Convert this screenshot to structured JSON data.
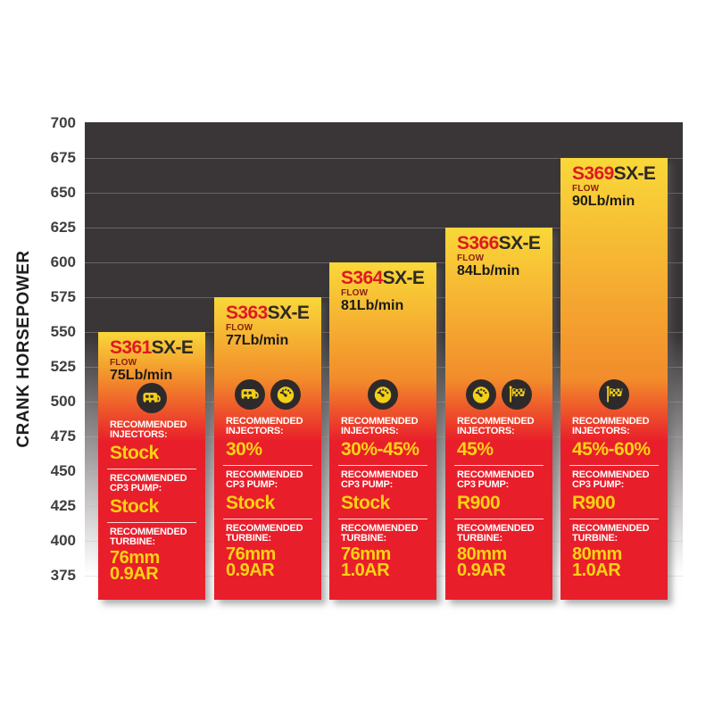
{
  "chart_data": {
    "type": "bar",
    "title": "",
    "xlabel": "",
    "ylabel": "CRANK HORSEPOWER",
    "ylim": [
      375,
      700
    ],
    "ytick_interval": 25,
    "yticks": [
      700,
      675,
      650,
      625,
      600,
      575,
      550,
      525,
      500,
      475,
      450,
      425,
      400,
      375
    ],
    "grid": "horizontal",
    "legend": "none",
    "categories": [
      "S361SX-E",
      "S363SX-E",
      "S364SX-E",
      "S366SX-E",
      "S369SX-E"
    ],
    "values": [
      550,
      575,
      600,
      625,
      675
    ]
  },
  "y_axis_title": "CRANK HORSEPOWER",
  "bars": [
    {
      "model_prefix": "S361",
      "model_suffix": "SX-E",
      "flow_label": "FLOW",
      "flow_value": "75Lb/min",
      "crank_horsepower": 550,
      "icons": [
        "camper"
      ],
      "injectors_label": "RECOMMENDED INJECTORS:",
      "injectors_value": "Stock",
      "cp3_label": "RECOMMENDED CP3 PUMP:",
      "cp3_value": "Stock",
      "turbine_label": "RECOMMENDED TURBINE:",
      "turbine_line1": "76mm",
      "turbine_line2": "0.9AR"
    },
    {
      "model_prefix": "S363",
      "model_suffix": "SX-E",
      "flow_label": "FLOW",
      "flow_value": "77Lb/min",
      "crank_horsepower": 575,
      "icons": [
        "camper",
        "gauge"
      ],
      "injectors_label": "RECOMMENDED INJECTORS:",
      "injectors_value": "30%",
      "cp3_label": "RECOMMENDED CP3 PUMP:",
      "cp3_value": "Stock",
      "turbine_label": "RECOMMENDED TURBINE:",
      "turbine_line1": "76mm",
      "turbine_line2": "0.9AR"
    },
    {
      "model_prefix": "S364",
      "model_suffix": "SX-E",
      "flow_label": "FLOW",
      "flow_value": "81Lb/min",
      "crank_horsepower": 600,
      "icons": [
        "gauge"
      ],
      "injectors_label": "RECOMMENDED INJECTORS:",
      "injectors_value": "30%-45%",
      "cp3_label": "RECOMMENDED CP3 PUMP:",
      "cp3_value": "Stock",
      "turbine_label": "RECOMMENDED TURBINE:",
      "turbine_line1": "76mm",
      "turbine_line2": "1.0AR"
    },
    {
      "model_prefix": "S366",
      "model_suffix": "SX-E",
      "flow_label": "FLOW",
      "flow_value": "84Lb/min",
      "crank_horsepower": 625,
      "icons": [
        "gauge",
        "flag"
      ],
      "injectors_label": "RECOMMENDED INJECTORS:",
      "injectors_value": "45%",
      "cp3_label": "RECOMMENDED CP3 PUMP:",
      "cp3_value": "R900",
      "turbine_label": "RECOMMENDED TURBINE:",
      "turbine_line1": "80mm",
      "turbine_line2": "0.9AR"
    },
    {
      "model_prefix": "S369",
      "model_suffix": "SX-E",
      "flow_label": "FLOW",
      "flow_value": "90Lb/min",
      "crank_horsepower": 675,
      "icons": [
        "flag"
      ],
      "injectors_label": "RECOMMENDED INJECTORS:",
      "injectors_value": "45%-60%",
      "cp3_label": "RECOMMENDED CP3 PUMP:",
      "cp3_value": "R900",
      "turbine_label": "RECOMMENDED TURBINE:",
      "turbine_line1": "80mm",
      "turbine_line2": "1.0AR"
    }
  ],
  "colors": {
    "bar_yellow": "#f9d839",
    "bar_orange": "#f28c2b",
    "bar_red": "#e91e2b",
    "model_red": "#dd1a21",
    "model_dark": "#2d2a26",
    "flow_label_maroon": "#8a2012",
    "value_yellow": "#fad312",
    "plot_bg_dark": "#3a3637",
    "icon_circle_bg": "#2e2a2b",
    "icon_glyph_yellow": "#f2cf17"
  },
  "icon_names": [
    "camper-icon",
    "gauge-icon",
    "checkered-flag-icon"
  ]
}
